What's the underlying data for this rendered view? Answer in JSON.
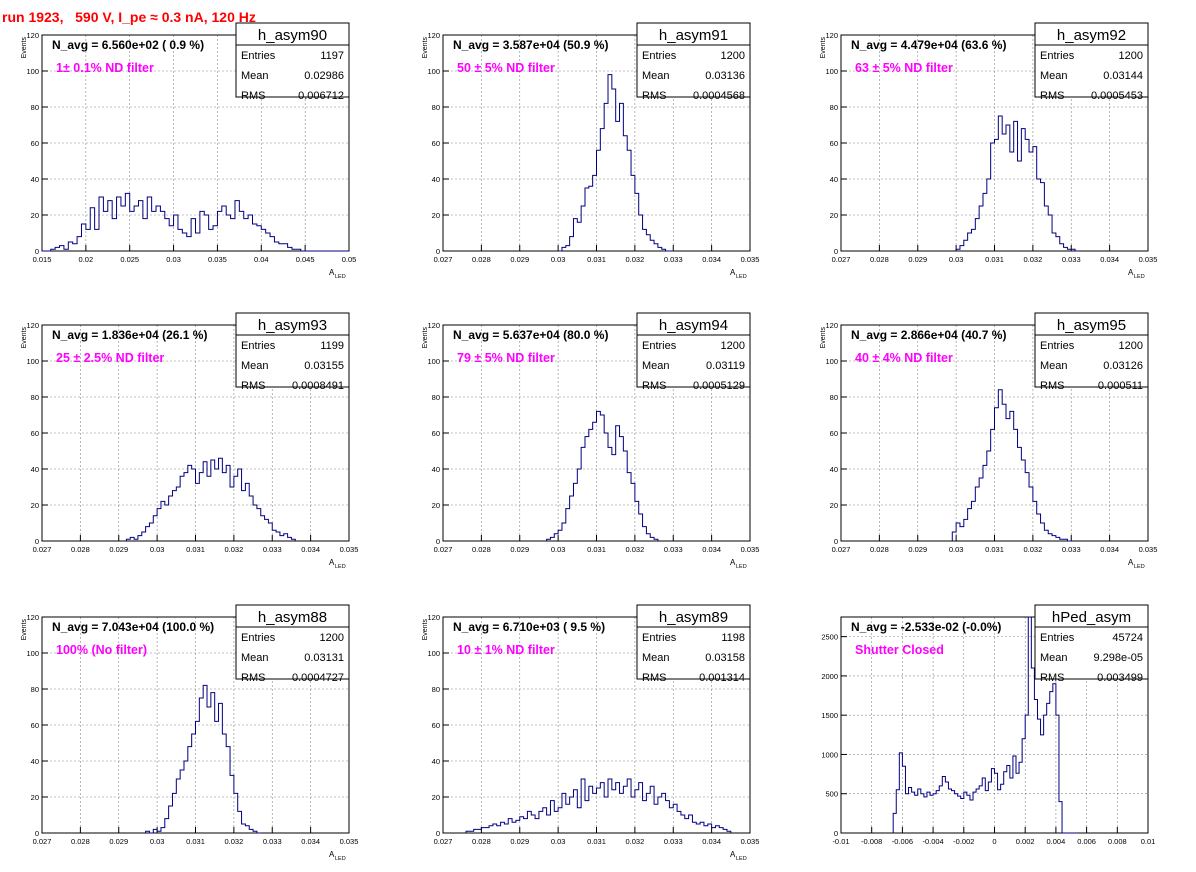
{
  "header": {
    "title": "run 1923,   590 V, I_pe ≈ 0.3 nA, 120 Hz"
  },
  "colors": {
    "hist": "#000080",
    "annotation": "#ff00ff",
    "title": "#ff0000",
    "grid": "#888888",
    "axis": "#000000"
  },
  "chart_data": [
    {
      "type": "histogram",
      "name": "h_asym90",
      "navg": "N_avg = 6.560e+02 ( 0.9 %)",
      "filter": "1± 0.1% ND filter",
      "stats": {
        "Entries": "1197",
        "Mean": "0.02986",
        "RMS": "0.006712"
      },
      "xlim": [
        0.015,
        0.05
      ],
      "ylim": [
        0,
        120
      ],
      "xticks": [
        "0.015",
        "0.02",
        "0.025",
        "0.03",
        "0.035",
        "0.04",
        "0.045",
        "0.05"
      ],
      "yticks": [
        "0",
        "20",
        "40",
        "60",
        "80",
        "100",
        "120"
      ],
      "xlabel": "A",
      "xlabel_sub": "LED",
      "ylabel": "Events",
      "x": [
        0.015,
        0.0155,
        0.016,
        0.0165,
        0.017,
        0.0175,
        0.018,
        0.0185,
        0.019,
        0.0195,
        0.02,
        0.0205,
        0.021,
        0.0215,
        0.022,
        0.0225,
        0.023,
        0.0235,
        0.024,
        0.0245,
        0.025,
        0.0255,
        0.026,
        0.0265,
        0.027,
        0.0275,
        0.028,
        0.0285,
        0.029,
        0.0295,
        0.03,
        0.0305,
        0.031,
        0.0315,
        0.032,
        0.0325,
        0.033,
        0.0335,
        0.034,
        0.0345,
        0.035,
        0.0355,
        0.036,
        0.0365,
        0.037,
        0.0375,
        0.038,
        0.0385,
        0.039,
        0.0395,
        0.04,
        0.0405,
        0.041,
        0.0415,
        0.042,
        0.0425,
        0.043,
        0.0435,
        0.044,
        0.0445,
        0.045,
        0.0455,
        0.046,
        0.0465,
        0.047,
        0.0475,
        0.048,
        0.0485,
        0.049,
        0.0495
      ],
      "values": [
        0,
        0,
        1,
        2,
        3,
        1,
        5,
        4,
        8,
        15,
        12,
        24,
        12,
        30,
        22,
        28,
        18,
        30,
        25,
        32,
        22,
        25,
        28,
        18,
        30,
        22,
        25,
        22,
        18,
        14,
        20,
        12,
        10,
        8,
        18,
        10,
        22,
        20,
        12,
        14,
        22,
        25,
        20,
        18,
        28,
        22,
        18,
        20,
        15,
        14,
        12,
        10,
        8,
        5,
        4,
        4,
        2,
        1,
        1,
        0,
        0,
        0,
        0,
        0,
        0,
        0,
        0,
        0,
        0,
        0
      ]
    },
    {
      "type": "histogram",
      "name": "h_asym91",
      "navg": "N_avg = 3.587e+04 (50.9 %)",
      "filter": "50 ± 5% ND filter",
      "stats": {
        "Entries": "1200",
        "Mean": "0.03136",
        "RMS": "0.0004568"
      },
      "xlim": [
        0.027,
        0.035
      ],
      "ylim": [
        0,
        120
      ],
      "xticks": [
        "0.027",
        "0.028",
        "0.029",
        "0.03",
        "0.031",
        "0.032",
        "0.033",
        "0.034",
        "0.035"
      ],
      "yticks": [
        "0",
        "20",
        "40",
        "60",
        "80",
        "100",
        "120"
      ],
      "xlabel": "A",
      "xlabel_sub": "LED",
      "ylabel": "Events",
      "x": [
        0.03,
        0.0301,
        0.0302,
        0.0303,
        0.0304,
        0.0305,
        0.0306,
        0.0307,
        0.0308,
        0.0309,
        0.031,
        0.0311,
        0.0312,
        0.0313,
        0.0314,
        0.0315,
        0.0316,
        0.0317,
        0.0318,
        0.0319,
        0.032,
        0.0321,
        0.0322,
        0.0323,
        0.0324,
        0.0325,
        0.0326,
        0.0327,
        0.0328,
        0.0329
      ],
      "values": [
        0,
        2,
        3,
        8,
        18,
        16,
        25,
        35,
        36,
        42,
        56,
        68,
        82,
        98,
        90,
        72,
        82,
        64,
        56,
        42,
        32,
        20,
        12,
        9,
        6,
        4,
        2,
        1,
        0,
        0
      ]
    },
    {
      "type": "histogram",
      "name": "h_asym92",
      "navg": "N_avg = 4.479e+04 (63.6 %)",
      "filter": "63 ± 5% ND filter",
      "stats": {
        "Entries": "1200",
        "Mean": "0.03144",
        "RMS": "0.0005453"
      },
      "xlim": [
        0.027,
        0.035
      ],
      "ylim": [
        0,
        120
      ],
      "xticks": [
        "0.027",
        "0.028",
        "0.029",
        "0.03",
        "0.031",
        "0.032",
        "0.033",
        "0.034",
        "0.035"
      ],
      "yticks": [
        "0",
        "20",
        "40",
        "60",
        "80",
        "100",
        "120"
      ],
      "xlabel": "A",
      "xlabel_sub": "LED",
      "ylabel": "Events",
      "x": [
        0.03,
        0.0301,
        0.0302,
        0.0303,
        0.0304,
        0.0305,
        0.0306,
        0.0307,
        0.0308,
        0.0309,
        0.031,
        0.0311,
        0.0312,
        0.0313,
        0.0314,
        0.0315,
        0.0316,
        0.0317,
        0.0318,
        0.0319,
        0.032,
        0.0321,
        0.0322,
        0.0323,
        0.0324,
        0.0325,
        0.0326,
        0.0327,
        0.0328,
        0.0329,
        0.033,
        0.0331
      ],
      "values": [
        1,
        3,
        6,
        10,
        12,
        18,
        25,
        32,
        40,
        60,
        62,
        75,
        65,
        70,
        55,
        72,
        50,
        68,
        62,
        55,
        58,
        40,
        38,
        25,
        20,
        10,
        8,
        4,
        2,
        1,
        1,
        0
      ]
    },
    {
      "type": "histogram",
      "name": "h_asym93",
      "navg": "N_avg = 1.836e+04 (26.1 %)",
      "filter": "25 ± 2.5% ND filter",
      "stats": {
        "Entries": "1199",
        "Mean": "0.03155",
        "RMS": "0.0008491"
      },
      "xlim": [
        0.027,
        0.035
      ],
      "ylim": [
        0,
        120
      ],
      "xticks": [
        "0.027",
        "0.028",
        "0.029",
        "0.03",
        "0.031",
        "0.032",
        "0.033",
        "0.034",
        "0.035"
      ],
      "yticks": [
        "0",
        "20",
        "40",
        "60",
        "80",
        "100",
        "120"
      ],
      "xlabel": "A",
      "xlabel_sub": "LED",
      "ylabel": "Events",
      "x": [
        0.0292,
        0.0293,
        0.0294,
        0.0295,
        0.0296,
        0.0297,
        0.0298,
        0.0299,
        0.03,
        0.0301,
        0.0302,
        0.0303,
        0.0304,
        0.0305,
        0.0306,
        0.0307,
        0.0308,
        0.0309,
        0.031,
        0.0311,
        0.0312,
        0.0313,
        0.0314,
        0.0315,
        0.0316,
        0.0317,
        0.0318,
        0.0319,
        0.032,
        0.0321,
        0.0322,
        0.0323,
        0.0324,
        0.0325,
        0.0326,
        0.0327,
        0.0328,
        0.0329,
        0.033,
        0.0331,
        0.0332,
        0.0333,
        0.0334,
        0.0335
      ],
      "values": [
        1,
        2,
        1,
        3,
        5,
        8,
        10,
        14,
        18,
        22,
        20,
        25,
        28,
        30,
        36,
        38,
        42,
        40,
        32,
        38,
        44,
        36,
        45,
        40,
        46,
        38,
        42,
        30,
        36,
        40,
        28,
        32,
        25,
        20,
        18,
        14,
        12,
        10,
        6,
        5,
        3,
        4,
        2,
        1
      ]
    },
    {
      "type": "histogram",
      "name": "h_asym94",
      "navg": "N_avg = 5.637e+04 (80.0 %)",
      "filter": "79 ± 5% ND filter",
      "stats": {
        "Entries": "1200",
        "Mean": "0.03119",
        "RMS": "0.0005129"
      },
      "xlim": [
        0.027,
        0.035
      ],
      "ylim": [
        0,
        120
      ],
      "xticks": [
        "0.027",
        "0.028",
        "0.029",
        "0.03",
        "0.031",
        "0.032",
        "0.033",
        "0.034",
        "0.035"
      ],
      "yticks": [
        "0",
        "20",
        "40",
        "60",
        "80",
        "100",
        "120"
      ],
      "xlabel": "A",
      "xlabel_sub": "LED",
      "ylabel": "Events",
      "x": [
        0.0297,
        0.0298,
        0.0299,
        0.03,
        0.0301,
        0.0302,
        0.0303,
        0.0304,
        0.0305,
        0.0306,
        0.0307,
        0.0308,
        0.0309,
        0.031,
        0.0311,
        0.0312,
        0.0313,
        0.0314,
        0.0315,
        0.0316,
        0.0317,
        0.0318,
        0.0319,
        0.032,
        0.0321,
        0.0322,
        0.0323,
        0.0324,
        0.0325
      ],
      "values": [
        1,
        2,
        4,
        6,
        10,
        18,
        25,
        32,
        40,
        52,
        58,
        62,
        66,
        72,
        70,
        60,
        52,
        48,
        64,
        58,
        50,
        38,
        32,
        22,
        15,
        8,
        4,
        2,
        1
      ]
    },
    {
      "type": "histogram",
      "name": "h_asym95",
      "navg": "N_avg = 2.866e+04 (40.7 %)",
      "filter": "40 ± 4% ND filter",
      "stats": {
        "Entries": "1200",
        "Mean": "0.03126",
        "RMS": "0.000511"
      },
      "xlim": [
        0.027,
        0.035
      ],
      "ylim": [
        0,
        120
      ],
      "xticks": [
        "0.027",
        "0.028",
        "0.029",
        "0.03",
        "0.031",
        "0.032",
        "0.033",
        "0.034",
        "0.035"
      ],
      "yticks": [
        "0",
        "20",
        "40",
        "60",
        "80",
        "100",
        "120"
      ],
      "xlabel": "A",
      "xlabel_sub": "LED",
      "ylabel": "Events",
      "x": [
        0.0299,
        0.03,
        0.0301,
        0.0302,
        0.0303,
        0.0304,
        0.0305,
        0.0306,
        0.0307,
        0.0308,
        0.0309,
        0.031,
        0.0311,
        0.0312,
        0.0313,
        0.0314,
        0.0315,
        0.0316,
        0.0317,
        0.0318,
        0.0319,
        0.032,
        0.0321,
        0.0322,
        0.0323,
        0.0324,
        0.0325,
        0.0326,
        0.0327,
        0.0328,
        0.0329
      ],
      "values": [
        5,
        10,
        8,
        12,
        18,
        22,
        30,
        35,
        42,
        50,
        62,
        74,
        84,
        76,
        68,
        72,
        62,
        52,
        45,
        38,
        30,
        22,
        15,
        10,
        6,
        4,
        3,
        2,
        1,
        1,
        0
      ]
    },
    {
      "type": "histogram",
      "name": "h_asym88",
      "navg": "N_avg = 7.043e+04 (100.0 %)",
      "filter": "100% (No filter)",
      "stats": {
        "Entries": "1200",
        "Mean": "0.03131",
        "RMS": "0.0004727"
      },
      "xlim": [
        0.027,
        0.035
      ],
      "ylim": [
        0,
        120
      ],
      "xticks": [
        "0.027",
        "0.028",
        "0.029",
        "0.03",
        "0.031",
        "0.032",
        "0.033",
        "0.034",
        "0.035"
      ],
      "yticks": [
        "0",
        "20",
        "40",
        "60",
        "80",
        "100",
        "120"
      ],
      "xlabel": "A",
      "xlabel_sub": "LED",
      "ylabel": "Events",
      "x": [
        0.0297,
        0.0298,
        0.0299,
        0.03,
        0.0301,
        0.0302,
        0.0303,
        0.0304,
        0.0305,
        0.0306,
        0.0307,
        0.0308,
        0.0309,
        0.031,
        0.0311,
        0.0312,
        0.0313,
        0.0314,
        0.0315,
        0.0316,
        0.0317,
        0.0318,
        0.0319,
        0.032,
        0.0321,
        0.0322,
        0.0323,
        0.0324,
        0.0325,
        0.0326
      ],
      "values": [
        1,
        0,
        2,
        1,
        3,
        8,
        15,
        22,
        30,
        35,
        40,
        48,
        55,
        62,
        75,
        82,
        70,
        78,
        62,
        72,
        55,
        48,
        32,
        22,
        12,
        5,
        4,
        2,
        1,
        0
      ]
    },
    {
      "type": "histogram",
      "name": "h_asym89",
      "navg": "N_avg = 6.710e+03 ( 9.5 %)",
      "filter": "10 ± 1% ND filter",
      "stats": {
        "Entries": "1198",
        "Mean": "0.03158",
        "RMS": "0.001314"
      },
      "xlim": [
        0.027,
        0.035
      ],
      "ylim": [
        0,
        120
      ],
      "xticks": [
        "0.027",
        "0.028",
        "0.029",
        "0.03",
        "0.031",
        "0.032",
        "0.033",
        "0.034",
        "0.035"
      ],
      "yticks": [
        "0",
        "20",
        "40",
        "60",
        "80",
        "100",
        "120"
      ],
      "xlabel": "A",
      "xlabel_sub": "LED",
      "ylabel": "Events",
      "x": [
        0.0276,
        0.0277,
        0.0278,
        0.0279,
        0.028,
        0.0281,
        0.0282,
        0.0283,
        0.0284,
        0.0285,
        0.0286,
        0.0287,
        0.0288,
        0.0289,
        0.029,
        0.0291,
        0.0292,
        0.0293,
        0.0294,
        0.0295,
        0.0296,
        0.0297,
        0.0298,
        0.0299,
        0.03,
        0.0301,
        0.0302,
        0.0303,
        0.0304,
        0.0305,
        0.0306,
        0.0307,
        0.0308,
        0.0309,
        0.031,
        0.0311,
        0.0312,
        0.0313,
        0.0314,
        0.0315,
        0.0316,
        0.0317,
        0.0318,
        0.0319,
        0.032,
        0.0321,
        0.0322,
        0.0323,
        0.0324,
        0.0325,
        0.0326,
        0.0327,
        0.0328,
        0.0329,
        0.033,
        0.0331,
        0.0332,
        0.0333,
        0.0334,
        0.0335,
        0.0336,
        0.0337,
        0.0338,
        0.0339,
        0.034,
        0.0341,
        0.0342,
        0.0343,
        0.0344
      ],
      "values": [
        1,
        1,
        2,
        2,
        3,
        3,
        4,
        5,
        4,
        6,
        5,
        8,
        6,
        7,
        9,
        8,
        12,
        10,
        8,
        12,
        14,
        10,
        18,
        12,
        14,
        22,
        16,
        20,
        24,
        14,
        30,
        18,
        26,
        22,
        25,
        28,
        20,
        30,
        24,
        28,
        22,
        26,
        30,
        20,
        24,
        28,
        18,
        22,
        26,
        16,
        20,
        22,
        18,
        14,
        16,
        12,
        10,
        8,
        10,
        6,
        5,
        6,
        4,
        5,
        3,
        4,
        3,
        2,
        1
      ]
    },
    {
      "type": "histogram",
      "name": "hPed_asym",
      "navg": "N_avg = -2.533e-02 (-0.0%)",
      "filter": "Shutter Closed",
      "stats": {
        "Entries": "45724",
        "Mean": "9.298e-05",
        "RMS": "0.003499"
      },
      "xlim": [
        -0.01,
        0.01
      ],
      "ylim": [
        0,
        2750
      ],
      "xticks": [
        "-0.01",
        "-0.008",
        "-0.006",
        "-0.004",
        "-0.002",
        "0",
        "0.002",
        "0.004",
        "0.006",
        "0.008",
        "0.01"
      ],
      "yticks": [
        "0",
        "500",
        "1000",
        "1500",
        "2000",
        "2500"
      ],
      "xlabel": "",
      "xlabel_sub": "",
      "ylabel": "",
      "x": [
        -0.0066,
        -0.0064,
        -0.0062,
        -0.006,
        -0.0058,
        -0.0056,
        -0.0054,
        -0.0052,
        -0.005,
        -0.0048,
        -0.0046,
        -0.0044,
        -0.0042,
        -0.004,
        -0.0038,
        -0.0036,
        -0.0034,
        -0.0032,
        -0.003,
        -0.0028,
        -0.0026,
        -0.0024,
        -0.0022,
        -0.002,
        -0.0018,
        -0.0016,
        -0.0014,
        -0.0012,
        -0.001,
        -0.0008,
        -0.0006,
        -0.0004,
        -0.0002,
        0,
        0.0002,
        0.0004,
        0.0006,
        0.0008,
        0.001,
        0.0012,
        0.0014,
        0.0016,
        0.0018,
        0.002,
        0.0022,
        0.0024,
        0.0026,
        0.0028,
        0.003,
        0.0032,
        0.0034,
        0.0036,
        0.0038,
        0.004,
        0.0042,
        0.0044,
        0.0046,
        0.0048,
        0.005,
        0.0052
      ],
      "values": [
        250,
        550,
        1020,
        850,
        500,
        580,
        520,
        480,
        560,
        500,
        460,
        520,
        480,
        500,
        540,
        600,
        720,
        650,
        560,
        540,
        500,
        470,
        440,
        520,
        480,
        420,
        520,
        560,
        600,
        700,
        540,
        650,
        820,
        760,
        550,
        620,
        780,
        860,
        700,
        980,
        760,
        900,
        1200,
        1500,
        2750,
        2100,
        1700,
        1450,
        1250,
        1500,
        1650,
        1800,
        1900,
        1500,
        400,
        0,
        0,
        0,
        0,
        0
      ]
    }
  ]
}
